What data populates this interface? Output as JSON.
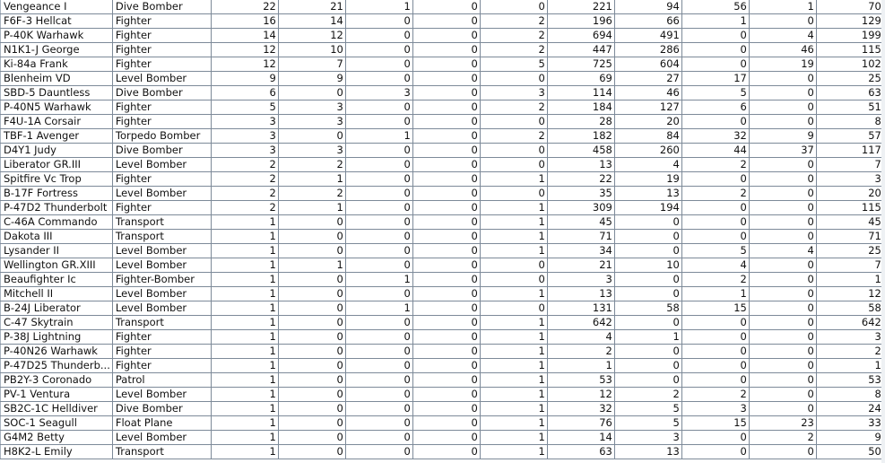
{
  "table": {
    "rows": [
      [
        "Vengeance I",
        "Dive Bomber",
        "22",
        "21",
        "1",
        "0",
        "0",
        "221",
        "94",
        "56",
        "1",
        "70"
      ],
      [
        "F6F-3 Hellcat",
        "Fighter",
        "16",
        "14",
        "0",
        "0",
        "2",
        "196",
        "66",
        "1",
        "0",
        "129"
      ],
      [
        "P-40K Warhawk",
        "Fighter",
        "14",
        "12",
        "0",
        "0",
        "2",
        "694",
        "491",
        "0",
        "4",
        "199"
      ],
      [
        "N1K1-J George",
        "Fighter",
        "12",
        "10",
        "0",
        "0",
        "2",
        "447",
        "286",
        "0",
        "46",
        "115"
      ],
      [
        "Ki-84a Frank",
        "Fighter",
        "12",
        "7",
        "0",
        "0",
        "5",
        "725",
        "604",
        "0",
        "19",
        "102"
      ],
      [
        "Blenheim VD",
        "Level Bomber",
        "9",
        "9",
        "0",
        "0",
        "0",
        "69",
        "27",
        "17",
        "0",
        "25"
      ],
      [
        "SBD-5 Dauntless",
        "Dive Bomber",
        "6",
        "0",
        "3",
        "0",
        "3",
        "114",
        "46",
        "5",
        "0",
        "63"
      ],
      [
        "P-40N5 Warhawk",
        "Fighter",
        "5",
        "3",
        "0",
        "0",
        "2",
        "184",
        "127",
        "6",
        "0",
        "51"
      ],
      [
        "F4U-1A Corsair",
        "Fighter",
        "3",
        "3",
        "0",
        "0",
        "0",
        "28",
        "20",
        "0",
        "0",
        "8"
      ],
      [
        "TBF-1 Avenger",
        "Torpedo Bomber",
        "3",
        "0",
        "1",
        "0",
        "2",
        "182",
        "84",
        "32",
        "9",
        "57"
      ],
      [
        "D4Y1 Judy",
        "Dive Bomber",
        "3",
        "3",
        "0",
        "0",
        "0",
        "458",
        "260",
        "44",
        "37",
        "117"
      ],
      [
        "Liberator GR.III",
        "Level Bomber",
        "2",
        "2",
        "0",
        "0",
        "0",
        "13",
        "4",
        "2",
        "0",
        "7"
      ],
      [
        "Spitfire Vc Trop",
        "Fighter",
        "2",
        "1",
        "0",
        "0",
        "1",
        "22",
        "19",
        "0",
        "0",
        "3"
      ],
      [
        "B-17F Fortress",
        "Level Bomber",
        "2",
        "2",
        "0",
        "0",
        "0",
        "35",
        "13",
        "2",
        "0",
        "20"
      ],
      [
        "P-47D2 Thunderbolt",
        "Fighter",
        "2",
        "1",
        "0",
        "0",
        "1",
        "309",
        "194",
        "0",
        "0",
        "115"
      ],
      [
        "C-46A Commando",
        "Transport",
        "1",
        "0",
        "0",
        "0",
        "1",
        "45",
        "0",
        "0",
        "0",
        "45"
      ],
      [
        "Dakota III",
        "Transport",
        "1",
        "0",
        "0",
        "0",
        "1",
        "71",
        "0",
        "0",
        "0",
        "71"
      ],
      [
        "Lysander II",
        "Level Bomber",
        "1",
        "0",
        "0",
        "0",
        "1",
        "34",
        "0",
        "5",
        "4",
        "25"
      ],
      [
        "Wellington GR.XIII",
        "Level Bomber",
        "1",
        "1",
        "0",
        "0",
        "0",
        "21",
        "10",
        "4",
        "0",
        "7"
      ],
      [
        "Beaufighter Ic",
        "Fighter-Bomber",
        "1",
        "0",
        "1",
        "0",
        "0",
        "3",
        "0",
        "2",
        "0",
        "1"
      ],
      [
        "Mitchell II",
        "Level Bomber",
        "1",
        "0",
        "0",
        "0",
        "1",
        "13",
        "0",
        "1",
        "0",
        "12"
      ],
      [
        "B-24J Liberator",
        "Level Bomber",
        "1",
        "0",
        "1",
        "0",
        "0",
        "131",
        "58",
        "15",
        "0",
        "58"
      ],
      [
        "C-47 Skytrain",
        "Transport",
        "1",
        "0",
        "0",
        "0",
        "1",
        "642",
        "0",
        "0",
        "0",
        "642"
      ],
      [
        "P-38J Lightning",
        "Fighter",
        "1",
        "0",
        "0",
        "0",
        "1",
        "4",
        "1",
        "0",
        "0",
        "3"
      ],
      [
        "P-40N26 Warhawk",
        "Fighter",
        "1",
        "0",
        "0",
        "0",
        "1",
        "2",
        "0",
        "0",
        "0",
        "2"
      ],
      [
        "P-47D25 Thunderb...",
        "Fighter",
        "1",
        "0",
        "0",
        "0",
        "1",
        "1",
        "0",
        "0",
        "0",
        "1"
      ],
      [
        "PB2Y-3 Coronado",
        "Patrol",
        "1",
        "0",
        "0",
        "0",
        "1",
        "53",
        "0",
        "0",
        "0",
        "53"
      ],
      [
        "PV-1 Ventura",
        "Level Bomber",
        "1",
        "0",
        "0",
        "0",
        "1",
        "12",
        "2",
        "2",
        "0",
        "8"
      ],
      [
        "SB2C-1C Helldiver",
        "Dive Bomber",
        "1",
        "0",
        "0",
        "0",
        "1",
        "32",
        "5",
        "3",
        "0",
        "24"
      ],
      [
        "SOC-1 Seagull",
        "Float Plane",
        "1",
        "0",
        "0",
        "0",
        "1",
        "76",
        "5",
        "15",
        "23",
        "33"
      ],
      [
        "G4M2 Betty",
        "Level Bomber",
        "1",
        "0",
        "0",
        "0",
        "1",
        "14",
        "3",
        "0",
        "2",
        "9"
      ],
      [
        "H8K2-L Emily",
        "Transport",
        "1",
        "0",
        "0",
        "0",
        "1",
        "63",
        "13",
        "0",
        "0",
        "50"
      ]
    ]
  }
}
